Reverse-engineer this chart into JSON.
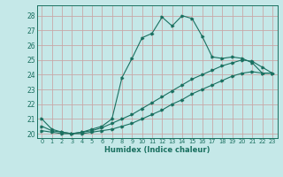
{
  "xlabel": "Humidex (Indice chaleur)",
  "background_color": "#c5e8e8",
  "grid_color": "#c8a8a8",
  "line_color": "#1a7060",
  "xlim": [
    -0.5,
    23.5
  ],
  "ylim": [
    19.7,
    28.7
  ],
  "yticks": [
    20,
    21,
    22,
    23,
    24,
    25,
    26,
    27,
    28
  ],
  "xticks": [
    0,
    1,
    2,
    3,
    4,
    5,
    6,
    7,
    8,
    9,
    10,
    11,
    12,
    13,
    14,
    15,
    16,
    17,
    18,
    19,
    20,
    21,
    22,
    23
  ],
  "series": [
    {
      "x": [
        0,
        1,
        2,
        3,
        4,
        5,
        6,
        7,
        8,
        9,
        10,
        11,
        12,
        13,
        14,
        15,
        16,
        17,
        18,
        19,
        20,
        21,
        22,
        23
      ],
      "y": [
        21.0,
        20.3,
        20.1,
        20.0,
        20.1,
        20.3,
        20.5,
        21.0,
        23.8,
        25.1,
        26.5,
        26.8,
        27.9,
        27.3,
        28.0,
        27.8,
        26.6,
        25.2,
        25.1,
        25.2,
        25.1,
        24.8,
        24.1,
        24.1
      ]
    },
    {
      "x": [
        0,
        1,
        2,
        3,
        4,
        5,
        6,
        7,
        8,
        9,
        10,
        11,
        12,
        13,
        14,
        15,
        16,
        17,
        18,
        19,
        20,
        21,
        22,
        23
      ],
      "y": [
        20.5,
        20.2,
        20.1,
        20.0,
        20.1,
        20.2,
        20.4,
        20.7,
        21.0,
        21.3,
        21.7,
        22.1,
        22.5,
        22.9,
        23.3,
        23.7,
        24.0,
        24.3,
        24.6,
        24.8,
        25.0,
        24.9,
        24.5,
        24.1
      ]
    },
    {
      "x": [
        0,
        1,
        2,
        3,
        4,
        5,
        6,
        7,
        8,
        9,
        10,
        11,
        12,
        13,
        14,
        15,
        16,
        17,
        18,
        19,
        20,
        21,
        22,
        23
      ],
      "y": [
        20.2,
        20.1,
        20.0,
        20.0,
        20.0,
        20.1,
        20.2,
        20.3,
        20.5,
        20.7,
        21.0,
        21.3,
        21.6,
        22.0,
        22.3,
        22.7,
        23.0,
        23.3,
        23.6,
        23.9,
        24.1,
        24.2,
        24.1,
        24.1
      ]
    }
  ]
}
